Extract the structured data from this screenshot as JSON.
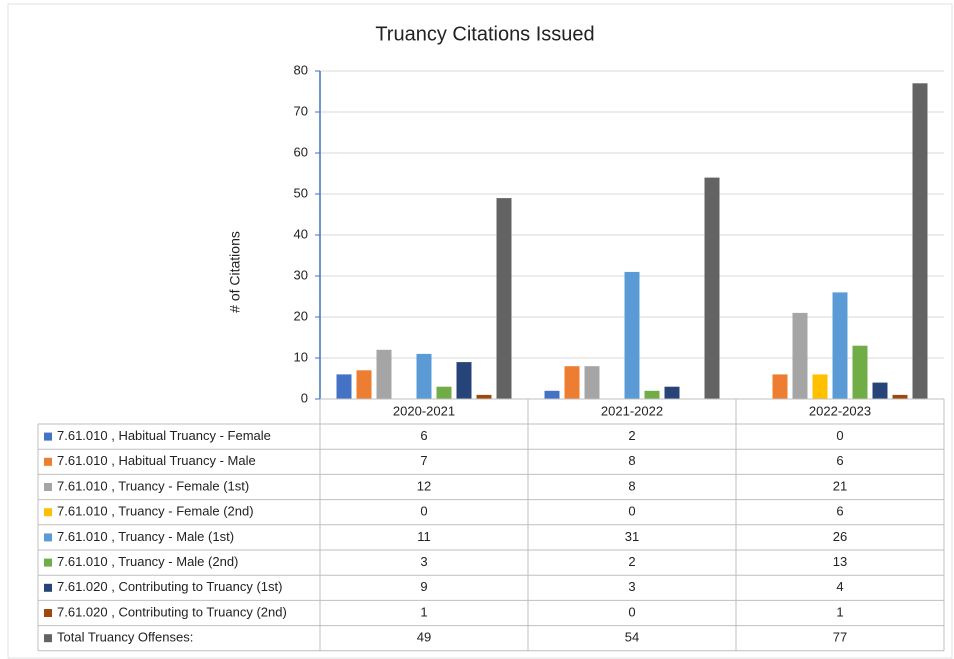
{
  "chart_data": {
    "type": "bar",
    "title": "Truancy Citations Issued",
    "y_label": "# of Citations",
    "categories": [
      "2020-2021",
      "2021-2022",
      "2022-2023"
    ],
    "series": [
      {
        "name": "7.61.010 , Habitual Truancy - Female",
        "color": "#4472c4",
        "values": [
          6,
          2,
          0
        ]
      },
      {
        "name": "7.61.010 , Habitual Truancy - Male",
        "color": "#ed7d31",
        "values": [
          7,
          8,
          6
        ]
      },
      {
        "name": "7.61.010 , Truancy - Female (1st)",
        "color": "#a5a5a5",
        "values": [
          12,
          8,
          21
        ]
      },
      {
        "name": "7.61.010 , Truancy - Female (2nd)",
        "color": "#ffc000",
        "values": [
          0,
          0,
          6
        ]
      },
      {
        "name": "7.61.010 , Truancy - Male (1st)",
        "color": "#5b9bd5",
        "values": [
          11,
          31,
          26
        ]
      },
      {
        "name": "7.61.010 , Truancy - Male (2nd)",
        "color": "#70ad47",
        "values": [
          3,
          2,
          13
        ]
      },
      {
        "name": "7.61.020 , Contributing to Truancy (1st)",
        "color": "#264478",
        "values": [
          9,
          3,
          4
        ]
      },
      {
        "name": "7.61.020 , Contributing to Truancy (2nd)",
        "color": "#9e480e",
        "values": [
          1,
          0,
          1
        ]
      },
      {
        "name": "Total Truancy Offenses:",
        "color": "#636363",
        "values": [
          49,
          54,
          77
        ]
      }
    ],
    "ylim": [
      0,
      80
    ],
    "yticks": [
      0,
      10,
      20,
      30,
      40,
      50,
      60,
      70,
      80
    ],
    "grid": true
  }
}
